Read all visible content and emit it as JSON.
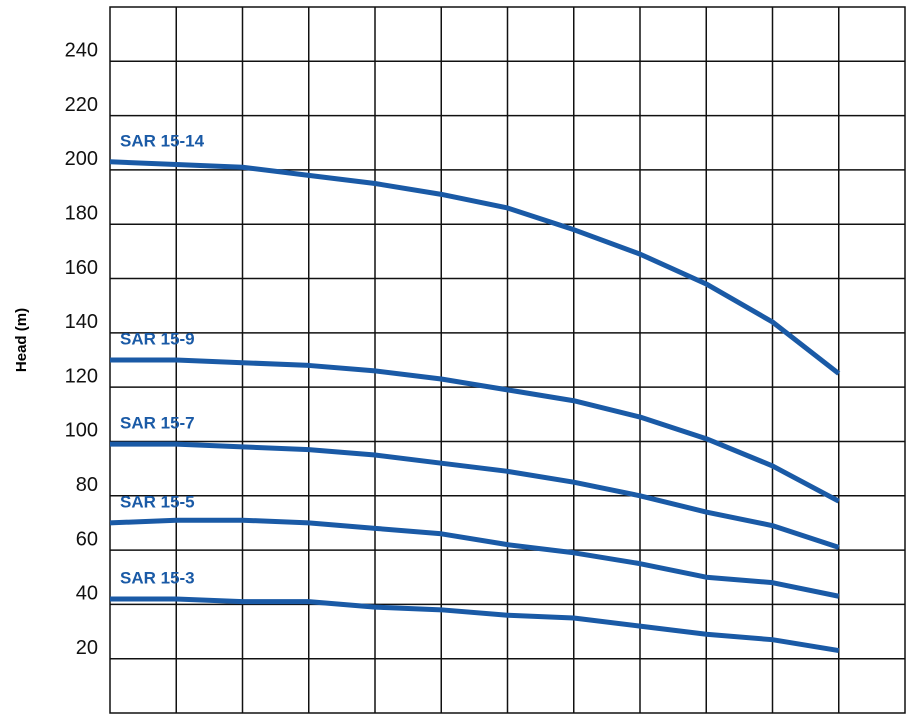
{
  "chart_data": {
    "type": "line",
    "y_label": "Head (m)",
    "x": [
      0,
      1,
      2,
      3,
      4,
      5,
      6,
      7,
      8,
      9,
      10,
      11
    ],
    "xlim": [
      0,
      12
    ],
    "ylim": [
      0,
      260
    ],
    "yticks": [
      20,
      40,
      60,
      80,
      100,
      120,
      140,
      160,
      180,
      200,
      220,
      240
    ],
    "grid": true,
    "series": [
      {
        "name": "SAR 15-14",
        "color": "#1a5aa6",
        "values": [
          203,
          202,
          201,
          198,
          195,
          191,
          186,
          178,
          169,
          158,
          144,
          125
        ]
      },
      {
        "name": "SAR 15-9",
        "color": "#1a5aa6",
        "values": [
          130,
          130,
          129,
          128,
          126,
          123,
          119,
          115,
          109,
          101,
          91,
          78
        ]
      },
      {
        "name": "SAR 15-7",
        "color": "#1a5aa6",
        "values": [
          99,
          99,
          98,
          97,
          95,
          92,
          89,
          85,
          80,
          74,
          69,
          61
        ]
      },
      {
        "name": "SAR 15-5",
        "color": "#1a5aa6",
        "values": [
          70,
          71,
          71,
          70,
          68,
          66,
          62,
          59,
          55,
          50,
          48,
          43
        ]
      },
      {
        "name": "SAR 15-3",
        "color": "#1a5aa6",
        "values": [
          42,
          42,
          41,
          41,
          39,
          38,
          36,
          35,
          32,
          29,
          27,
          23
        ]
      }
    ]
  }
}
